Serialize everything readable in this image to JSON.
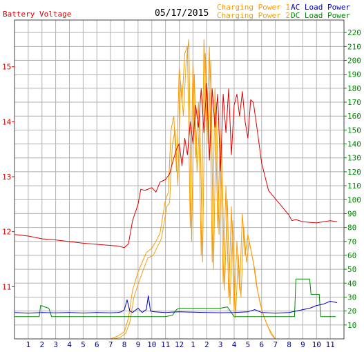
{
  "header": {
    "left_title": "Battery Voltage",
    "date": "05/17/2015",
    "legend": {
      "charging_power_1": "Charging Power 1",
      "charging_power_2": "Charging Power 2",
      "ac_load_power": "AC Load Power",
      "dc_load_power": "DC Load Power"
    }
  },
  "colors": {
    "battery": "#dd0000",
    "charging1": "#ff9900",
    "charging2": "#e6a417",
    "ac_load": "#0000cc",
    "dc_load": "#008800",
    "grid": "#b0b0b0",
    "right_axis": "#008800",
    "left_axis": "#dd0000",
    "x_axis": "#000080"
  },
  "chart_data": {
    "type": "line",
    "x_ticks": [
      "1",
      "2",
      "3",
      "4",
      "5",
      "6",
      "7",
      "8",
      "9",
      "10",
      "11",
      "12",
      "1",
      "2",
      "3",
      "4",
      "5",
      "6",
      "7",
      "8",
      "9",
      "10",
      "11"
    ],
    "xlim": [
      0,
      24
    ],
    "y_left": {
      "ticks": [
        11,
        12,
        13,
        14,
        15
      ],
      "ylim": [
        10.05,
        15.85
      ]
    },
    "y_right": {
      "ticks": [
        10,
        20,
        30,
        40,
        50,
        60,
        70,
        80,
        90,
        100,
        110,
        120,
        130,
        140,
        150,
        160,
        170,
        180,
        190,
        200,
        210,
        220
      ],
      "ylim": [
        0,
        229
      ]
    },
    "series": [
      {
        "name": "Battery Voltage",
        "axis": "left",
        "x": [
          0,
          1,
          2,
          3,
          4,
          5,
          6,
          7,
          7.5,
          8,
          8.3,
          8.6,
          9,
          9.2,
          9.5,
          10,
          10.3,
          10.6,
          11,
          11.3,
          11.5,
          11.8,
          12,
          12.2,
          12.4,
          12.6,
          12.8,
          13,
          13.2,
          13.4,
          13.6,
          13.8,
          14,
          14.2,
          14.4,
          14.6,
          14.8,
          15,
          15.2,
          15.4,
          15.6,
          15.8,
          16,
          16.2,
          16.4,
          16.6,
          16.8,
          17,
          17.2,
          17.4,
          17.6,
          18,
          18.5,
          19,
          19.5,
          20,
          20.2,
          20.5,
          21,
          21.5,
          22,
          22.5,
          23,
          23.5
        ],
        "y": [
          11.95,
          11.92,
          11.87,
          11.85,
          11.82,
          11.79,
          11.77,
          11.75,
          11.74,
          11.71,
          11.78,
          12.2,
          12.5,
          12.77,
          12.75,
          12.8,
          12.72,
          12.9,
          12.95,
          13.05,
          13.25,
          13.5,
          13.6,
          13.2,
          13.7,
          13.4,
          14.0,
          13.6,
          14.3,
          13.9,
          14.6,
          13.8,
          14.7,
          13.3,
          14.6,
          13.9,
          14.5,
          13.1,
          14.5,
          13.8,
          14.6,
          13.4,
          14.3,
          14.5,
          14.1,
          14.55,
          14.0,
          13.7,
          14.4,
          14.35,
          14.0,
          13.25,
          12.75,
          12.6,
          12.45,
          12.3,
          12.2,
          12.22,
          12.18,
          12.17,
          12.16,
          12.18,
          12.2,
          12.18
        ]
      },
      {
        "name": "Charging Power 1",
        "axis": "right",
        "x": [
          6.5,
          7,
          7.5,
          8,
          8.3,
          8.6,
          9,
          9.3,
          9.6,
          10,
          10.3,
          10.6,
          11,
          11.2,
          11.4,
          11.6,
          11.8,
          12,
          12.2,
          12.4,
          12.6,
          12.8,
          13,
          13.2,
          13.4,
          13.6,
          13.8,
          14,
          14.2,
          14.4,
          14.6,
          14.8,
          15,
          15.2,
          15.4,
          15.6,
          15.8,
          16,
          16.2,
          16.4,
          16.6,
          16.8,
          17,
          17.2,
          17.4,
          17.6,
          17.8,
          18,
          18.2,
          18.5,
          18.8,
          19
        ],
        "y": [
          0,
          0,
          2,
          5,
          15,
          35,
          48,
          55,
          62,
          65,
          70,
          76,
          100,
          105,
          150,
          160,
          120,
          195,
          170,
          205,
          210,
          80,
          200,
          130,
          170,
          60,
          215,
          150,
          210,
          55,
          180,
          80,
          150,
          40,
          110,
          30,
          95,
          20,
          70,
          35,
          90,
          60,
          75,
          65,
          55,
          40,
          30,
          22,
          15,
          8,
          3,
          0
        ]
      },
      {
        "name": "Charging Power 2",
        "axis": "right",
        "x": [
          6.7,
          7.2,
          7.7,
          8.1,
          8.4,
          8.7,
          9.1,
          9.4,
          9.7,
          10.1,
          10.4,
          10.7,
          11.1,
          11.3,
          11.5,
          11.7,
          11.9,
          12.1,
          12.3,
          12.5,
          12.7,
          12.9,
          13.1,
          13.3,
          13.5,
          13.7,
          13.9,
          14.1,
          14.3,
          14.5,
          14.7,
          14.9,
          15.1,
          15.3,
          15.5,
          15.7,
          15.9,
          16.1,
          16.3,
          16.5,
          16.7,
          16.9,
          17.1,
          17.3,
          17.5,
          17.7,
          17.9,
          18.1,
          18.4,
          18.7,
          19
        ],
        "y": [
          0,
          0,
          1,
          4,
          12,
          30,
          42,
          50,
          58,
          60,
          66,
          72,
          95,
          98,
          140,
          150,
          110,
          185,
          160,
          198,
          215,
          70,
          190,
          120,
          160,
          55,
          205,
          140,
          200,
          50,
          170,
          75,
          140,
          35,
          100,
          25,
          85,
          15,
          60,
          30,
          80,
          55,
          70,
          60,
          50,
          35,
          25,
          18,
          10,
          3,
          0
        ]
      },
      {
        "name": "AC Load Power",
        "axis": "right",
        "x": [
          0,
          1,
          2,
          3,
          4,
          5,
          6,
          7,
          7.5,
          7.8,
          8,
          8.2,
          8.4,
          8.6,
          9,
          9.3,
          9.6,
          9.75,
          9.9,
          10.2,
          11,
          12,
          13,
          14,
          15,
          16,
          17,
          17.5,
          18,
          19,
          20,
          20.5,
          21,
          21.5,
          22,
          22.5,
          23,
          23.5
        ],
        "y": [
          19,
          18.5,
          19,
          18.7,
          19,
          18.6,
          19,
          18.7,
          19,
          19.5,
          21,
          28,
          20,
          19,
          22,
          19,
          21,
          31,
          20,
          19.5,
          19,
          19.5,
          19.2,
          19,
          18.8,
          19,
          19.5,
          21,
          19,
          18.5,
          19,
          20,
          21,
          22,
          24,
          25,
          27,
          26
        ]
      },
      {
        "name": "DC Load Power",
        "axis": "right",
        "x": [
          0,
          1,
          1.8,
          1.9,
          2.5,
          2.7,
          3,
          4,
          5,
          6,
          7,
          8,
          9,
          10,
          11,
          11.5,
          11.8,
          12,
          13,
          14,
          15,
          15.5,
          16,
          17,
          18,
          19,
          20,
          20.4,
          20.5,
          21,
          21.5,
          21.6,
          22,
          22.2,
          22.3,
          23,
          23.2,
          23.4
        ],
        "y": [
          16,
          16,
          16,
          24,
          22,
          16,
          16,
          16,
          16,
          16,
          16,
          16,
          16,
          16,
          16,
          17,
          21,
          22,
          22,
          22,
          22,
          23,
          16,
          16,
          16,
          16,
          16,
          16,
          43,
          43,
          43,
          32,
          32,
          32,
          16,
          16,
          16,
          16
        ]
      }
    ]
  }
}
